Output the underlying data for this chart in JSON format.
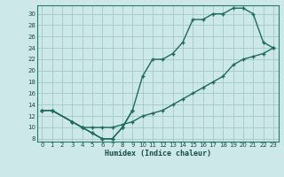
{
  "xlabel": "Humidex (Indice chaleur)",
  "bg_color": "#cce8e8",
  "grid_color": "#a8cccc",
  "line_color": "#1e6b5e",
  "xlim": [
    -0.5,
    23.5
  ],
  "ylim": [
    7.5,
    31.5
  ],
  "xticks": [
    0,
    1,
    2,
    3,
    4,
    5,
    6,
    7,
    8,
    9,
    10,
    11,
    12,
    13,
    14,
    15,
    16,
    17,
    18,
    19,
    20,
    21,
    22,
    23
  ],
  "yticks": [
    8,
    10,
    12,
    14,
    16,
    18,
    20,
    22,
    24,
    26,
    28,
    30
  ],
  "curve_x": [
    0,
    1,
    3,
    4,
    5,
    6,
    7,
    8,
    9,
    10,
    11,
    12,
    13,
    14,
    15,
    16,
    17,
    18,
    19,
    20,
    21,
    22,
    23
  ],
  "curve_y": [
    13,
    13,
    11,
    10,
    9,
    8,
    8,
    10,
    13,
    19,
    22,
    22,
    23,
    25,
    29,
    29,
    30,
    30,
    31,
    31,
    30,
    25,
    24
  ],
  "dip_x": [
    0,
    1,
    3,
    4,
    5,
    6,
    7,
    8,
    9
  ],
  "dip_y": [
    13,
    13,
    11,
    10,
    9,
    8,
    8,
    10,
    13
  ],
  "diag_x": [
    0,
    1,
    3,
    4,
    5,
    6,
    7,
    8,
    9,
    10,
    11,
    12,
    13,
    14,
    15,
    16,
    17,
    18,
    19,
    20,
    21,
    22,
    23
  ],
  "diag_y": [
    13,
    13,
    11,
    10,
    10,
    10,
    10,
    10.5,
    11,
    12,
    12.5,
    13,
    14,
    15,
    16,
    17,
    18,
    19,
    21,
    22,
    22.5,
    23,
    24
  ]
}
